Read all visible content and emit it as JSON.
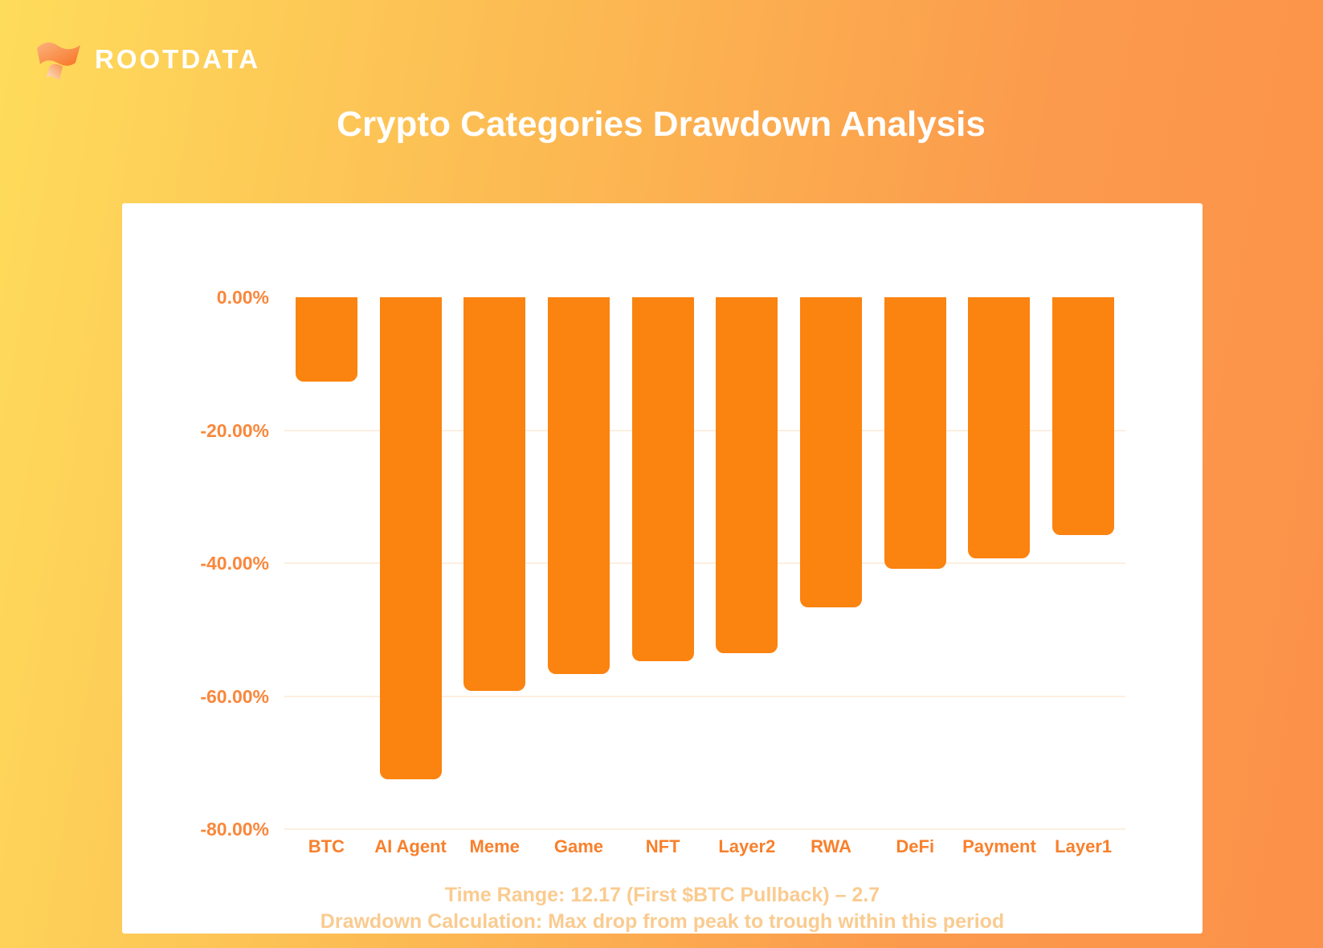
{
  "logo": {
    "text": "ROOTDATA"
  },
  "title": "Crypto Categories Drawdown Analysis",
  "chart_data": {
    "type": "bar",
    "title": "Crypto Categories Drawdown Analysis",
    "categories": [
      "BTC",
      "AI Agent",
      "Meme",
      "Game",
      "NFT",
      "Layer2",
      "RWA",
      "DeFi",
      "Payment",
      "Layer1"
    ],
    "values": [
      -12.7,
      -72.5,
      -59.2,
      -56.7,
      -54.7,
      -53.5,
      -46.6,
      -40.8,
      -39.3,
      -35.8
    ],
    "unit": "%",
    "ylabel": "",
    "xlabel": "",
    "ylim": [
      -80,
      0
    ],
    "y_ticks": [
      0,
      -20,
      -40,
      -60,
      -80
    ],
    "y_tick_labels": [
      "0.00%",
      "-20.00%",
      "-40.00%",
      "-60.00%",
      "-80.00%"
    ],
    "grid": true,
    "legend": false
  },
  "footer": {
    "line1": "Time Range: 12.17 (First $BTC Pullback) – 2.7",
    "line2": "Drawdown Calculation: Max drop from peak to trough within this period"
  },
  "colors": {
    "background_gradient": [
      "#FEDC5B",
      "#FB9A4C",
      "#FC9149"
    ],
    "card_background": "#FFFFFF",
    "title_color": "#FFFFFF",
    "bar_color": "#FB8310",
    "y_label_color": "#F9873B",
    "x_label_color": "#F8802C",
    "gridline_color": "#FCEFE0",
    "footer_color": "#FACB90"
  }
}
